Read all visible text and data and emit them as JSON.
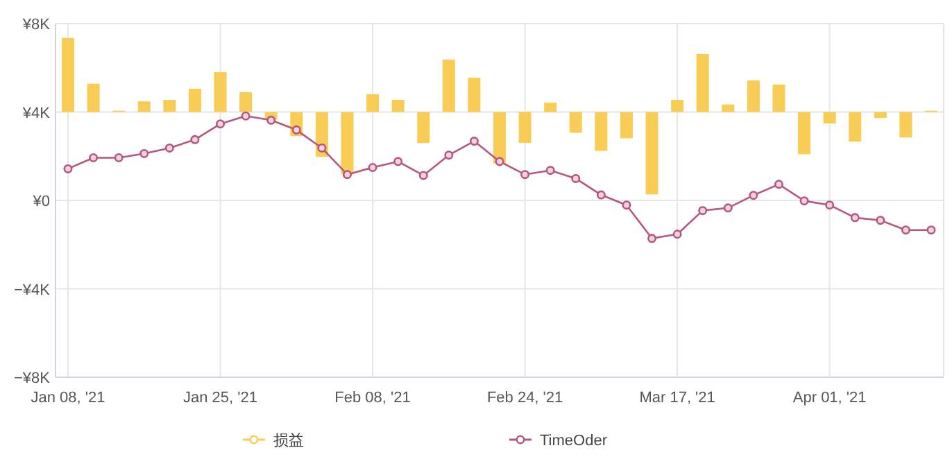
{
  "chart_data": {
    "type": "bar",
    "categories": [
      "Jan 08, '21",
      null,
      null,
      null,
      null,
      null,
      "Jan 25, '21",
      null,
      null,
      null,
      null,
      null,
      "Feb 08, '21",
      null,
      null,
      null,
      null,
      null,
      "Feb 24, '21",
      null,
      null,
      null,
      null,
      null,
      "Mar 17, '21",
      null,
      null,
      null,
      null,
      null,
      "Apr 01, '21",
      null,
      null,
      null,
      null
    ],
    "ylim": [
      -8000,
      8000
    ],
    "yticks": [
      {
        "value": -8000,
        "label": "−¥8K"
      },
      {
        "value": -4000,
        "label": "−¥4K"
      },
      {
        "value": 0,
        "label": "¥0"
      },
      {
        "value": 4000,
        "label": "¥4K"
      },
      {
        "value": 8000,
        "label": "¥8K"
      }
    ],
    "grid": true,
    "legend": "bottom",
    "series": [
      {
        "name": "损益",
        "color": "#f9cd55",
        "base": [
          4000,
          4000,
          4000,
          4000,
          4000,
          4000,
          4000,
          4000,
          4000,
          4000,
          4000,
          4000,
          4000,
          4000,
          4000,
          4000,
          4000,
          4000,
          4000,
          4000,
          4000,
          4000,
          4000,
          4000,
          4000,
          4000,
          4000,
          4000,
          4000,
          4000,
          4000,
          4000,
          4000,
          4000,
          4000
        ],
        "values": [
          3350,
          1280,
          60,
          480,
          550,
          1050,
          1800,
          900,
          -340,
          -1090,
          -2030,
          -2810,
          800,
          550,
          -1400,
          2370,
          1550,
          -2330,
          -1400,
          420,
          -940,
          -1760,
          -1190,
          -3730,
          550,
          2620,
          340,
          1430,
          1240,
          -1910,
          -520,
          -1340,
          -270,
          -1150,
          60
        ]
      },
      {
        "type": "line",
        "name": "TimeOder",
        "color": "#b5577f",
        "marker": "circle",
        "values": [
          1430,
          1930,
          1930,
          2120,
          2370,
          2750,
          3460,
          3820,
          3630,
          3190,
          2370,
          1170,
          1490,
          1760,
          1130,
          2050,
          2680,
          1760,
          1170,
          1360,
          990,
          250,
          -210,
          -1720,
          -1530,
          -460,
          -340,
          230,
          730,
          -20,
          -210,
          -780,
          -900,
          -1340,
          -1340
        ]
      }
    ]
  }
}
